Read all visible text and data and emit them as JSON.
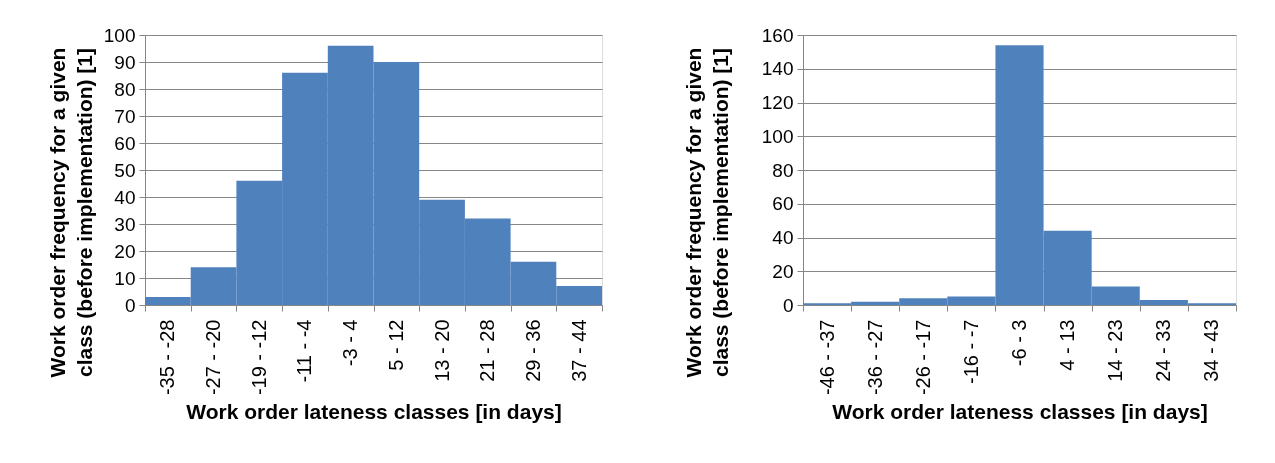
{
  "chart_data": [
    {
      "type": "bar",
      "xlabel": "Work order lateness classes [in days]",
      "ylabel": "Work order frequency for a given\nclass (before implementation) [1]",
      "categories": [
        "-35 - -28",
        "-27 - -20",
        "-19 - -12",
        "-11 - -4",
        "-3 - 4",
        "5 - 12",
        "13 - 20",
        "21 - 28",
        "29 - 36",
        "37 - 44"
      ],
      "values": [
        3,
        14,
        46,
        86,
        96,
        90,
        39,
        32,
        16,
        7
      ],
      "color": "#4f81bd",
      "ylim": [
        0,
        100
      ],
      "yticks": [
        0,
        10,
        20,
        30,
        40,
        50,
        60,
        70,
        80,
        90,
        100
      ],
      "grid": "y"
    },
    {
      "type": "bar",
      "xlabel": "Work order lateness classes [in days]",
      "ylabel": "Work order frequency for a given\nclass (before implementation) [1]",
      "categories": [
        "-46 - -37",
        "-36 - -27",
        "-26 - -17",
        "-16 - -7",
        "-6 - 3",
        "4 - 13",
        "14 - 23",
        "24 - 33",
        "34 - 43"
      ],
      "values": [
        1,
        2,
        4,
        5,
        154,
        44,
        11,
        3,
        1
      ],
      "color": "#4f81bd",
      "ylim": [
        0,
        160
      ],
      "yticks": [
        0,
        20,
        40,
        60,
        80,
        100,
        120,
        140,
        160
      ],
      "grid": "y"
    }
  ]
}
